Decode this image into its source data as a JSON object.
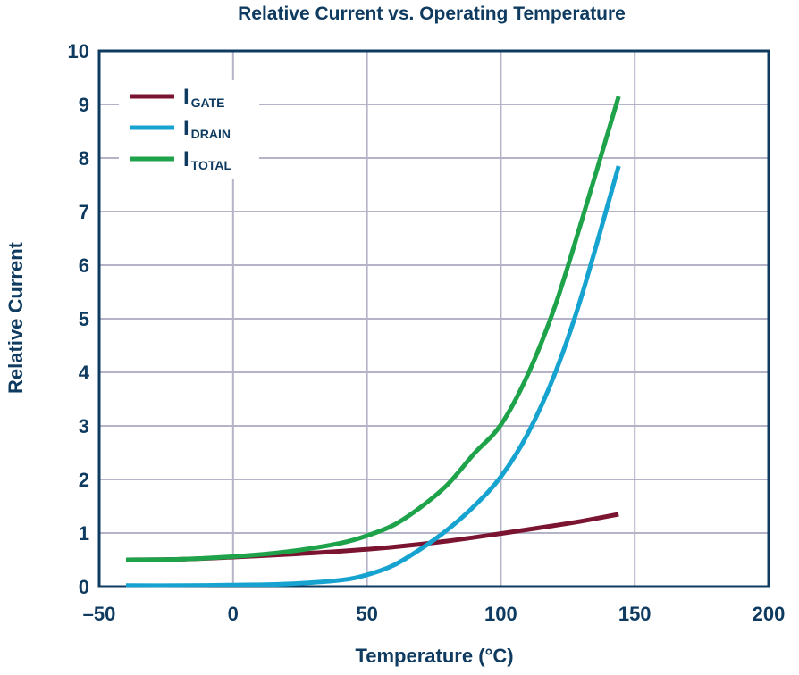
{
  "chart_data": {
    "type": "line",
    "title": "Relative Current vs. Operating Temperature",
    "xlabel": "Temperature (°C)",
    "ylabel": "Relative Current",
    "xlim": [
      -50,
      200
    ],
    "ylim": [
      0,
      10
    ],
    "x_ticks": [
      -50,
      0,
      50,
      100,
      150,
      200
    ],
    "x_tick_labels": [
      "–50",
      "0",
      "50",
      "100",
      "150",
      "200"
    ],
    "y_ticks": [
      0,
      1,
      2,
      3,
      4,
      5,
      6,
      7,
      8,
      9,
      10
    ],
    "y_tick_labels": [
      "0",
      "1",
      "2",
      "3",
      "4",
      "5",
      "6",
      "7",
      "8",
      "9",
      "10"
    ],
    "grid": true,
    "legend_position": "top-left",
    "series": [
      {
        "name": "I",
        "name_subscript": "GATE",
        "color": "#7b1431",
        "x": [
          -40,
          -20,
          0,
          20,
          40,
          60,
          80,
          100,
          120,
          130,
          144
        ],
        "y": [
          0.5,
          0.51,
          0.55,
          0.6,
          0.66,
          0.74,
          0.85,
          0.99,
          1.14,
          1.22,
          1.35
        ]
      },
      {
        "name": "I",
        "name_subscript": "DRAIN",
        "color": "#16a3cf",
        "x": [
          -40,
          -20,
          0,
          20,
          40,
          50,
          60,
          70,
          80,
          90,
          100,
          110,
          120,
          130,
          144
        ],
        "y": [
          0.02,
          0.02,
          0.03,
          0.05,
          0.12,
          0.22,
          0.4,
          0.7,
          1.06,
          1.5,
          2.05,
          2.85,
          3.95,
          5.4,
          7.85
        ]
      },
      {
        "name": "I",
        "name_subscript": "TOTAL",
        "color": "#1ea34a",
        "x": [
          -40,
          -20,
          0,
          20,
          40,
          50,
          60,
          70,
          80,
          90,
          100,
          110,
          120,
          130,
          144
        ],
        "y": [
          0.5,
          0.51,
          0.56,
          0.65,
          0.81,
          0.95,
          1.15,
          1.48,
          1.9,
          2.48,
          3.02,
          3.95,
          5.2,
          6.8,
          9.15
        ]
      }
    ]
  }
}
